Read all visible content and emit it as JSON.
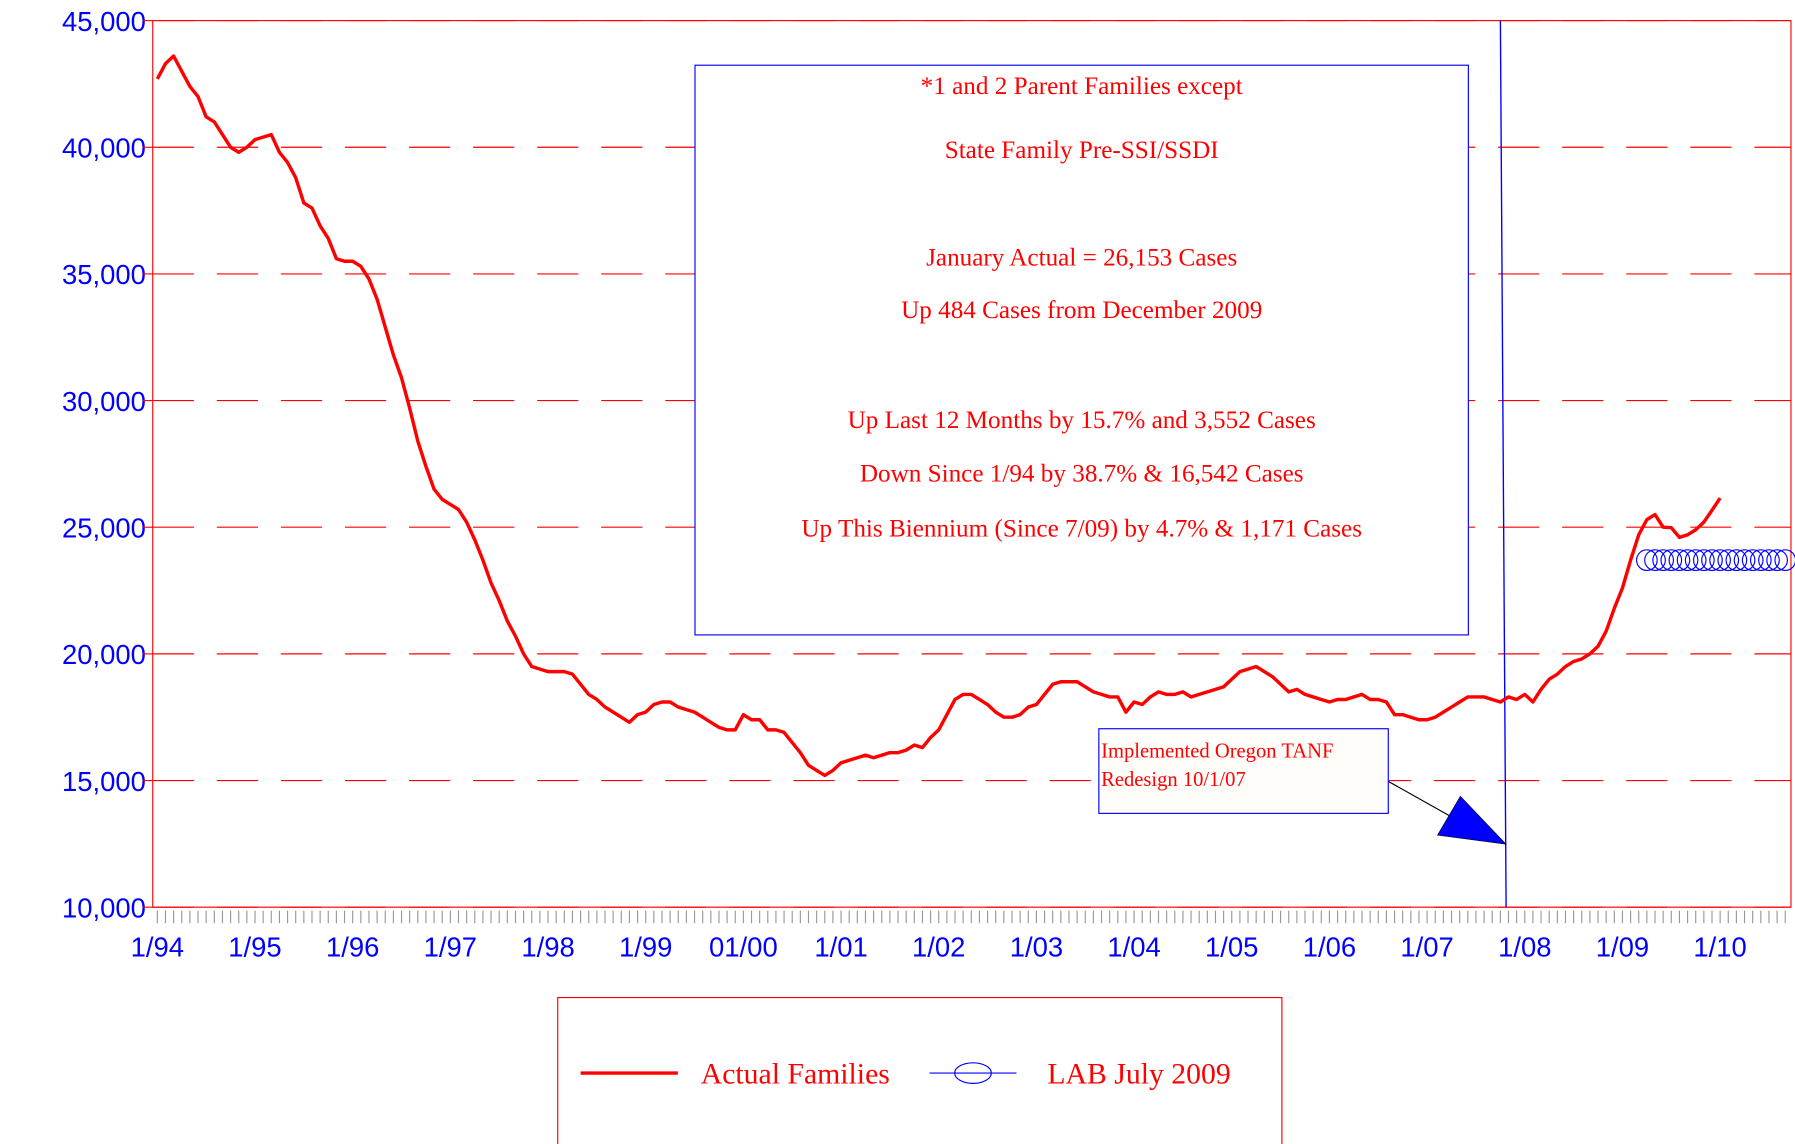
{
  "chart_data": {
    "type": "line",
    "categories": [
      "1/94",
      null,
      null,
      null,
      null,
      null,
      null,
      null,
      null,
      null,
      null,
      null,
      "1/95",
      null,
      null,
      null,
      null,
      null,
      null,
      null,
      null,
      null,
      null,
      null,
      "1/96",
      null,
      null,
      null,
      null,
      null,
      null,
      null,
      null,
      null,
      null,
      null,
      "1/97",
      null,
      null,
      null,
      null,
      null,
      null,
      null,
      null,
      null,
      null,
      null,
      "1/98",
      null,
      null,
      null,
      null,
      null,
      null,
      null,
      null,
      null,
      null,
      null,
      "1/99",
      null,
      null,
      null,
      null,
      null,
      null,
      null,
      null,
      null,
      null,
      null,
      "01/00",
      null,
      null,
      null,
      null,
      null,
      null,
      null,
      null,
      null,
      null,
      null,
      "1/01",
      null,
      null,
      null,
      null,
      null,
      null,
      null,
      null,
      null,
      null,
      null,
      "1/02",
      null,
      null,
      null,
      null,
      null,
      null,
      null,
      null,
      null,
      null,
      null,
      "1/03",
      null,
      null,
      null,
      null,
      null,
      null,
      null,
      null,
      null,
      null,
      null,
      "1/04",
      null,
      null,
      null,
      null,
      null,
      null,
      null,
      null,
      null,
      null,
      null,
      "1/05",
      null,
      null,
      null,
      null,
      null,
      null,
      null,
      null,
      null,
      null,
      null,
      "1/06",
      null,
      null,
      null,
      null,
      null,
      null,
      null,
      null,
      null,
      null,
      null,
      "1/07",
      null,
      null,
      null,
      null,
      null,
      null,
      null,
      null,
      null,
      null,
      null,
      "1/08",
      null,
      null,
      null,
      null,
      null,
      null,
      null,
      null,
      null,
      null,
      null,
      "1/09",
      null,
      null,
      null,
      null,
      null,
      null,
      null,
      null,
      null,
      null,
      null,
      "1/10",
      null,
      null,
      null,
      null,
      null,
      null,
      null,
      null
    ],
    "series": [
      {
        "name": "Actual Families",
        "color": "#ff0000",
        "marker": "none",
        "values": [
          42695,
          43300,
          43600,
          43000,
          42400,
          42000,
          41200,
          41000,
          40500,
          40000,
          39800,
          40000,
          40300,
          40400,
          40500,
          39800,
          39400,
          38800,
          37800,
          37600,
          36900,
          36400,
          35600,
          35500,
          35500,
          35300,
          34800,
          34000,
          32900,
          31800,
          30900,
          29700,
          28400,
          27400,
          26500,
          26100,
          25900,
          25700,
          25200,
          24500,
          23700,
          22800,
          22100,
          21300,
          20700,
          20000,
          19500,
          19400,
          19300,
          19300,
          19300,
          19200,
          18800,
          18400,
          18200,
          17900,
          17700,
          17500,
          17300,
          17600,
          17700,
          18000,
          18100,
          18100,
          17900,
          17800,
          17700,
          17500,
          17300,
          17100,
          17000,
          17000,
          17600,
          17400,
          17400,
          17000,
          17000,
          16900,
          16500,
          16100,
          15600,
          15400,
          15200,
          15400,
          15700,
          15800,
          15900,
          16000,
          15900,
          16000,
          16100,
          16100,
          16200,
          16400,
          16300,
          16700,
          17000,
          17600,
          18200,
          18400,
          18400,
          18200,
          18000,
          17700,
          17500,
          17500,
          17600,
          17900,
          18000,
          18400,
          18800,
          18900,
          18900,
          18900,
          18700,
          18500,
          18400,
          18300,
          18300,
          17700,
          18100,
          18000,
          18300,
          18500,
          18400,
          18400,
          18500,
          18300,
          18400,
          18500,
          18600,
          18700,
          19000,
          19300,
          19400,
          19500,
          19300,
          19100,
          18800,
          18500,
          18600,
          18400,
          18300,
          18200,
          18100,
          18200,
          18200,
          18300,
          18400,
          18200,
          18200,
          18100,
          17600,
          17600,
          17500,
          17400,
          17400,
          17500,
          17700,
          17900,
          18100,
          18300,
          18300,
          18300,
          18200,
          18100,
          18300,
          18200,
          18400,
          18100,
          18600,
          19000,
          19200,
          19500,
          19700,
          19800,
          20000,
          20300,
          20900,
          21800,
          22601,
          23700,
          24700,
          25300,
          25500,
          25000,
          24982,
          24600,
          24700,
          24900,
          25200,
          25669,
          26153,
          null,
          null,
          null,
          null,
          null,
          null,
          null,
          null
        ]
      },
      {
        "name": "LAB July 2009",
        "color": "#0000ff",
        "marker": "circle",
        "values": [
          null,
          null,
          null,
          null,
          null,
          null,
          null,
          null,
          null,
          null,
          null,
          null,
          null,
          null,
          null,
          null,
          null,
          null,
          null,
          null,
          null,
          null,
          null,
          null,
          null,
          null,
          null,
          null,
          null,
          null,
          null,
          null,
          null,
          null,
          null,
          null,
          null,
          null,
          null,
          null,
          null,
          null,
          null,
          null,
          null,
          null,
          null,
          null,
          null,
          null,
          null,
          null,
          null,
          null,
          null,
          null,
          null,
          null,
          null,
          null,
          null,
          null,
          null,
          null,
          null,
          null,
          null,
          null,
          null,
          null,
          null,
          null,
          null,
          null,
          null,
          null,
          null,
          null,
          null,
          null,
          null,
          null,
          null,
          null,
          null,
          null,
          null,
          null,
          null,
          null,
          null,
          null,
          null,
          null,
          null,
          null,
          null,
          null,
          null,
          null,
          null,
          null,
          null,
          null,
          null,
          null,
          null,
          null,
          null,
          null,
          null,
          null,
          null,
          null,
          null,
          null,
          null,
          null,
          null,
          null,
          null,
          null,
          null,
          null,
          null,
          null,
          null,
          null,
          null,
          null,
          null,
          null,
          null,
          null,
          null,
          null,
          null,
          null,
          null,
          null,
          null,
          null,
          null,
          null,
          null,
          null,
          null,
          null,
          null,
          null,
          null,
          null,
          null,
          null,
          null,
          null,
          null,
          null,
          null,
          null,
          null,
          null,
          null,
          null,
          null,
          null,
          null,
          null,
          null,
          null,
          null,
          null,
          null,
          null,
          null,
          null,
          null,
          null,
          null,
          null,
          null,
          null,
          null,
          23700,
          23700,
          23700,
          23700,
          23700,
          23700,
          23700,
          23700,
          23700,
          23700,
          23700,
          23700,
          23700,
          23700,
          23700,
          23700,
          23700,
          23700
        ]
      }
    ],
    "ylim": [
      10000,
      45000
    ],
    "yticks": [
      {
        "value": 10000,
        "label": "10,000"
      },
      {
        "value": 15000,
        "label": "15,000"
      },
      {
        "value": 20000,
        "label": "20,000"
      },
      {
        "value": 25000,
        "label": "25,000"
      },
      {
        "value": 30000,
        "label": "30,000"
      },
      {
        "value": 35000,
        "label": "35,000"
      },
      {
        "value": 40000,
        "label": "40,000"
      },
      {
        "value": 45000,
        "label": "45,000"
      }
    ],
    "grid": true,
    "annotation_box": [
      "*1 and 2 Parent Families except",
      "State Family Pre-SSI/SSDI",
      "January Actual  = 26,153 Cases",
      "Up 484  Cases from  December  2009",
      "Up Last 12 Months by 15.7% and 3,552 Cases",
      "Down Since 1/94 by 38.7%  & 16,542 Cases",
      "Up This Biennium (Since 7/09) by 4.7%  & 1,171 Cases"
    ],
    "callout": [
      "Implemented Oregon TANF",
      "Redesign 10/1/07"
    ],
    "legend": "bottom"
  }
}
